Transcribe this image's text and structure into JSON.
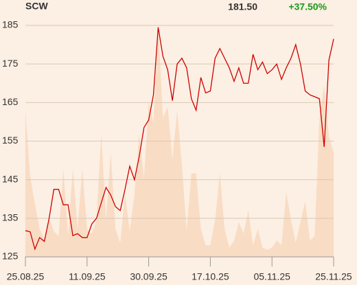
{
  "chart_data": {
    "type": "line",
    "title": "SCW",
    "price": "181.50",
    "change": "+37.50%",
    "change_color": "#1a9a1a",
    "categories": [
      "25.08.25",
      null,
      null,
      null,
      null,
      null,
      null,
      null,
      null,
      null,
      null,
      null,
      null,
      "11.09.25",
      null,
      null,
      null,
      null,
      null,
      null,
      null,
      null,
      null,
      null,
      null,
      null,
      "30.09.25",
      null,
      null,
      null,
      null,
      null,
      null,
      null,
      null,
      null,
      null,
      null,
      null,
      "17.10.25",
      null,
      null,
      null,
      null,
      null,
      null,
      null,
      null,
      null,
      null,
      null,
      null,
      "05.11.25",
      null,
      null,
      null,
      null,
      null,
      null,
      null,
      null,
      null,
      null,
      null,
      null,
      "25.11.25"
    ],
    "series": [
      {
        "color": "#cc0000",
        "values": [
          131.8,
          131.5,
          127,
          130,
          129,
          135,
          142.5,
          142.5,
          138.5,
          138.5,
          130.5,
          131,
          130,
          130,
          133.5,
          135,
          139,
          143,
          141,
          138,
          137,
          142.5,
          148.5,
          145,
          151,
          158.5,
          160.5,
          167,
          184.5,
          177,
          173.5,
          165.5,
          175,
          176.5,
          174,
          166,
          163,
          171.5,
          167.5,
          168,
          176.5,
          179,
          176.5,
          174,
          170.5,
          174,
          170,
          170,
          177.5,
          173.5,
          175.5,
          172.5,
          173.5,
          175,
          171,
          174,
          176.5,
          180,
          175,
          168,
          167,
          166.5,
          166,
          153.5,
          176,
          181.5
        ]
      },
      {
        "color": "#f9dcc4",
        "axis": "y2",
        "values": [
          63,
          35,
          23,
          12,
          8,
          17,
          11,
          9,
          38,
          9,
          38,
          12,
          38,
          12,
          10,
          16,
          53,
          16,
          45,
          12,
          6,
          27,
          11,
          27,
          53,
          34,
          67,
          58,
          99,
          60,
          65,
          42,
          63,
          40,
          11,
          36,
          36,
          12,
          5,
          5,
          16,
          36,
          12,
          4,
          7,
          15,
          10,
          20,
          5,
          12,
          4,
          3,
          4,
          7,
          5,
          28,
          16,
          6,
          15,
          24,
          7,
          9,
          60,
          74,
          52,
          45
        ]
      }
    ],
    "ylim": [
      125,
      185
    ],
    "yticks": [
      125,
      135,
      145,
      155,
      165,
      175,
      185
    ],
    "y2lim": [
      0,
      100
    ],
    "grid": true
  }
}
